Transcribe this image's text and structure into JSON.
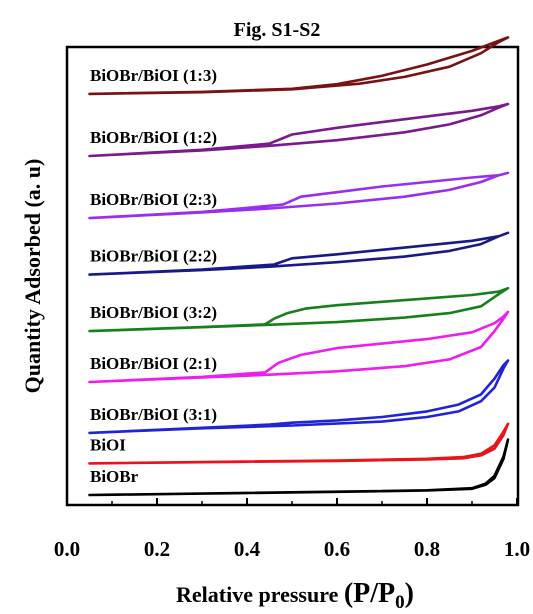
{
  "chart_data": {
    "type": "line",
    "title": "Fig. S1-S2",
    "xlabel": "Relative pressure (P/P0)",
    "ylabel": "Quantity Adsorbed (a. u)",
    "xlim": [
      0.0,
      1.0
    ],
    "xticks": [
      "0.0",
      "0.2",
      "0.4",
      "0.6",
      "0.8",
      "1.0"
    ],
    "yticks_shown": false,
    "grid": false,
    "series": [
      {
        "name": "BiOBr",
        "color": "#000000",
        "offset": 0.0,
        "adsorption": [
          [
            0.05,
            0.0
          ],
          [
            0.3,
            0.012
          ],
          [
            0.6,
            0.028
          ],
          [
            0.8,
            0.04
          ],
          [
            0.9,
            0.055
          ],
          [
            0.93,
            0.09
          ],
          [
            0.95,
            0.15
          ],
          [
            0.97,
            0.32
          ],
          [
            0.98,
            0.49
          ]
        ],
        "desorption": [
          [
            0.98,
            0.49
          ],
          [
            0.97,
            0.34
          ],
          [
            0.95,
            0.17
          ],
          [
            0.93,
            0.1
          ],
          [
            0.9,
            0.06
          ],
          [
            0.8,
            0.042
          ],
          [
            0.6,
            0.029
          ],
          [
            0.3,
            0.013
          ],
          [
            0.05,
            0.0
          ]
        ]
      },
      {
        "name": "BiOI",
        "color": "#e8141c",
        "offset": 0.28,
        "adsorption": [
          [
            0.05,
            0.0
          ],
          [
            0.3,
            0.01
          ],
          [
            0.6,
            0.022
          ],
          [
            0.8,
            0.035
          ],
          [
            0.88,
            0.045
          ],
          [
            0.92,
            0.07
          ],
          [
            0.95,
            0.13
          ],
          [
            0.97,
            0.25
          ],
          [
            0.98,
            0.35
          ]
        ],
        "desorption": [
          [
            0.98,
            0.35
          ],
          [
            0.97,
            0.28
          ],
          [
            0.95,
            0.16
          ],
          [
            0.92,
            0.085
          ],
          [
            0.88,
            0.055
          ],
          [
            0.8,
            0.04
          ],
          [
            0.6,
            0.025
          ],
          [
            0.3,
            0.012
          ],
          [
            0.05,
            0.0
          ]
        ]
      },
      {
        "name": "BiOBr/BiOI (3:1)",
        "color": "#1f24d6",
        "offset": 0.55,
        "adsorption": [
          [
            0.05,
            0.0
          ],
          [
            0.3,
            0.04
          ],
          [
            0.5,
            0.065
          ],
          [
            0.7,
            0.1
          ],
          [
            0.8,
            0.14
          ],
          [
            0.87,
            0.19
          ],
          [
            0.92,
            0.28
          ],
          [
            0.95,
            0.4
          ],
          [
            0.97,
            0.57
          ],
          [
            0.98,
            0.64
          ]
        ],
        "desorption": [
          [
            0.98,
            0.64
          ],
          [
            0.97,
            0.6
          ],
          [
            0.95,
            0.48
          ],
          [
            0.92,
            0.34
          ],
          [
            0.87,
            0.25
          ],
          [
            0.8,
            0.19
          ],
          [
            0.7,
            0.14
          ],
          [
            0.6,
            0.11
          ],
          [
            0.5,
            0.09
          ],
          [
            0.45,
            0.073
          ],
          [
            0.3,
            0.045
          ],
          [
            0.05,
            0.0
          ]
        ]
      },
      {
        "name": "BiOBr/BiOI (2:1)",
        "color": "#ee1cee",
        "offset": 1.0,
        "adsorption": [
          [
            0.05,
            0.0
          ],
          [
            0.3,
            0.04
          ],
          [
            0.45,
            0.065
          ],
          [
            0.6,
            0.095
          ],
          [
            0.75,
            0.14
          ],
          [
            0.85,
            0.2
          ],
          [
            0.92,
            0.31
          ],
          [
            0.95,
            0.45
          ],
          [
            0.97,
            0.56
          ],
          [
            0.98,
            0.62
          ]
        ],
        "desorption": [
          [
            0.98,
            0.62
          ],
          [
            0.97,
            0.58
          ],
          [
            0.95,
            0.52
          ],
          [
            0.9,
            0.44
          ],
          [
            0.8,
            0.38
          ],
          [
            0.7,
            0.34
          ],
          [
            0.6,
            0.3
          ],
          [
            0.52,
            0.24
          ],
          [
            0.47,
            0.17
          ],
          [
            0.44,
            0.085
          ],
          [
            0.3,
            0.045
          ],
          [
            0.05,
            0.0
          ]
        ]
      },
      {
        "name": "BiOBr/BiOI (3:2)",
        "color": "#16811c",
        "offset": 1.45,
        "adsorption": [
          [
            0.05,
            0.0
          ],
          [
            0.3,
            0.035
          ],
          [
            0.44,
            0.055
          ],
          [
            0.6,
            0.08
          ],
          [
            0.75,
            0.12
          ],
          [
            0.85,
            0.16
          ],
          [
            0.92,
            0.22
          ],
          [
            0.96,
            0.33
          ],
          [
            0.98,
            0.38
          ]
        ],
        "desorption": [
          [
            0.98,
            0.38
          ],
          [
            0.96,
            0.35
          ],
          [
            0.9,
            0.32
          ],
          [
            0.8,
            0.29
          ],
          [
            0.7,
            0.26
          ],
          [
            0.6,
            0.23
          ],
          [
            0.53,
            0.2
          ],
          [
            0.49,
            0.16
          ],
          [
            0.46,
            0.11
          ],
          [
            0.44,
            0.06
          ],
          [
            0.3,
            0.037
          ],
          [
            0.05,
            0.0
          ]
        ]
      },
      {
        "name": "BiOBr/BiOI (2:2)",
        "color": "#191a86",
        "offset": 1.95,
        "adsorption": [
          [
            0.05,
            0.0
          ],
          [
            0.3,
            0.04
          ],
          [
            0.45,
            0.07
          ],
          [
            0.6,
            0.11
          ],
          [
            0.75,
            0.16
          ],
          [
            0.85,
            0.21
          ],
          [
            0.92,
            0.27
          ],
          [
            0.96,
            0.34
          ],
          [
            0.98,
            0.37
          ]
        ],
        "desorption": [
          [
            0.98,
            0.37
          ],
          [
            0.96,
            0.34
          ],
          [
            0.9,
            0.3
          ],
          [
            0.8,
            0.26
          ],
          [
            0.7,
            0.22
          ],
          [
            0.6,
            0.18
          ],
          [
            0.5,
            0.145
          ],
          [
            0.46,
            0.09
          ],
          [
            0.3,
            0.045
          ],
          [
            0.05,
            0.0
          ]
        ]
      },
      {
        "name": "BiOBr/BiOI (2:3)",
        "color": "#9a2ef0",
        "offset": 2.45,
        "adsorption": [
          [
            0.05,
            0.0
          ],
          [
            0.3,
            0.05
          ],
          [
            0.45,
            0.085
          ],
          [
            0.6,
            0.13
          ],
          [
            0.75,
            0.19
          ],
          [
            0.85,
            0.25
          ],
          [
            0.92,
            0.32
          ],
          [
            0.96,
            0.38
          ],
          [
            0.98,
            0.4
          ]
        ],
        "desorption": [
          [
            0.98,
            0.4
          ],
          [
            0.96,
            0.38
          ],
          [
            0.9,
            0.36
          ],
          [
            0.8,
            0.32
          ],
          [
            0.7,
            0.28
          ],
          [
            0.6,
            0.23
          ],
          [
            0.52,
            0.19
          ],
          [
            0.48,
            0.12
          ],
          [
            0.3,
            0.055
          ],
          [
            0.05,
            0.0
          ]
        ]
      },
      {
        "name": "BiOBr/BiOI (1:2)",
        "color": "#7b1a8c",
        "offset": 3.0,
        "adsorption": [
          [
            0.05,
            0.0
          ],
          [
            0.3,
            0.05
          ],
          [
            0.45,
            0.09
          ],
          [
            0.6,
            0.14
          ],
          [
            0.75,
            0.21
          ],
          [
            0.85,
            0.28
          ],
          [
            0.92,
            0.36
          ],
          [
            0.96,
            0.43
          ],
          [
            0.98,
            0.46
          ]
        ],
        "desorption": [
          [
            0.98,
            0.46
          ],
          [
            0.96,
            0.44
          ],
          [
            0.9,
            0.4
          ],
          [
            0.8,
            0.35
          ],
          [
            0.7,
            0.3
          ],
          [
            0.6,
            0.25
          ],
          [
            0.5,
            0.19
          ],
          [
            0.45,
            0.11
          ],
          [
            0.3,
            0.055
          ],
          [
            0.05,
            0.0
          ]
        ]
      },
      {
        "name": "BiOBr/BiOI (1:3)",
        "color": "#7a1212",
        "offset": 3.55,
        "adsorption": [
          [
            0.05,
            0.0
          ],
          [
            0.3,
            0.015
          ],
          [
            0.5,
            0.04
          ],
          [
            0.65,
            0.09
          ],
          [
            0.75,
            0.15
          ],
          [
            0.85,
            0.24
          ],
          [
            0.92,
            0.36
          ],
          [
            0.96,
            0.46
          ],
          [
            0.98,
            0.5
          ]
        ],
        "desorption": [
          [
            0.98,
            0.5
          ],
          [
            0.96,
            0.47
          ],
          [
            0.9,
            0.38
          ],
          [
            0.8,
            0.26
          ],
          [
            0.7,
            0.16
          ],
          [
            0.6,
            0.085
          ],
          [
            0.5,
            0.045
          ],
          [
            0.3,
            0.017
          ],
          [
            0.05,
            0.0
          ]
        ]
      }
    ]
  }
}
